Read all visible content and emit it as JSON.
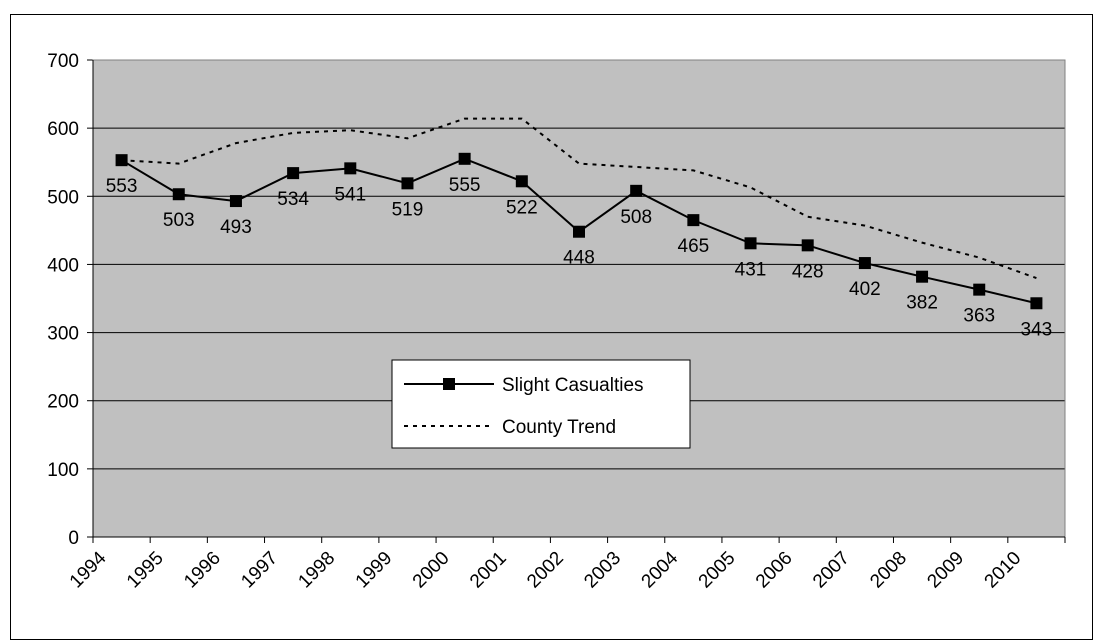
{
  "chart_data": {
    "type": "line",
    "categories": [
      "1994",
      "1995",
      "1996",
      "1997",
      "1998",
      "1999",
      "2000",
      "2001",
      "2002",
      "2003",
      "2004",
      "2005",
      "2006",
      "2007",
      "2008",
      "2009",
      "2010"
    ],
    "series": [
      {
        "name": "Slight Casualties",
        "color": "#000000",
        "style": "solid",
        "marker": "square",
        "values": [
          553,
          503,
          493,
          534,
          541,
          519,
          555,
          522,
          448,
          508,
          465,
          431,
          428,
          402,
          382,
          363,
          343
        ]
      },
      {
        "name": "County Trend",
        "color": "#000000",
        "style": "dotted",
        "values": [
          553,
          548,
          578,
          593,
          597,
          585,
          614,
          614,
          548,
          543,
          538,
          513,
          470,
          457,
          432,
          410,
          380
        ]
      }
    ],
    "ylim": [
      0,
      700
    ],
    "yticks": [
      0,
      100,
      200,
      300,
      400,
      500,
      600,
      700
    ],
    "grid": true
  }
}
